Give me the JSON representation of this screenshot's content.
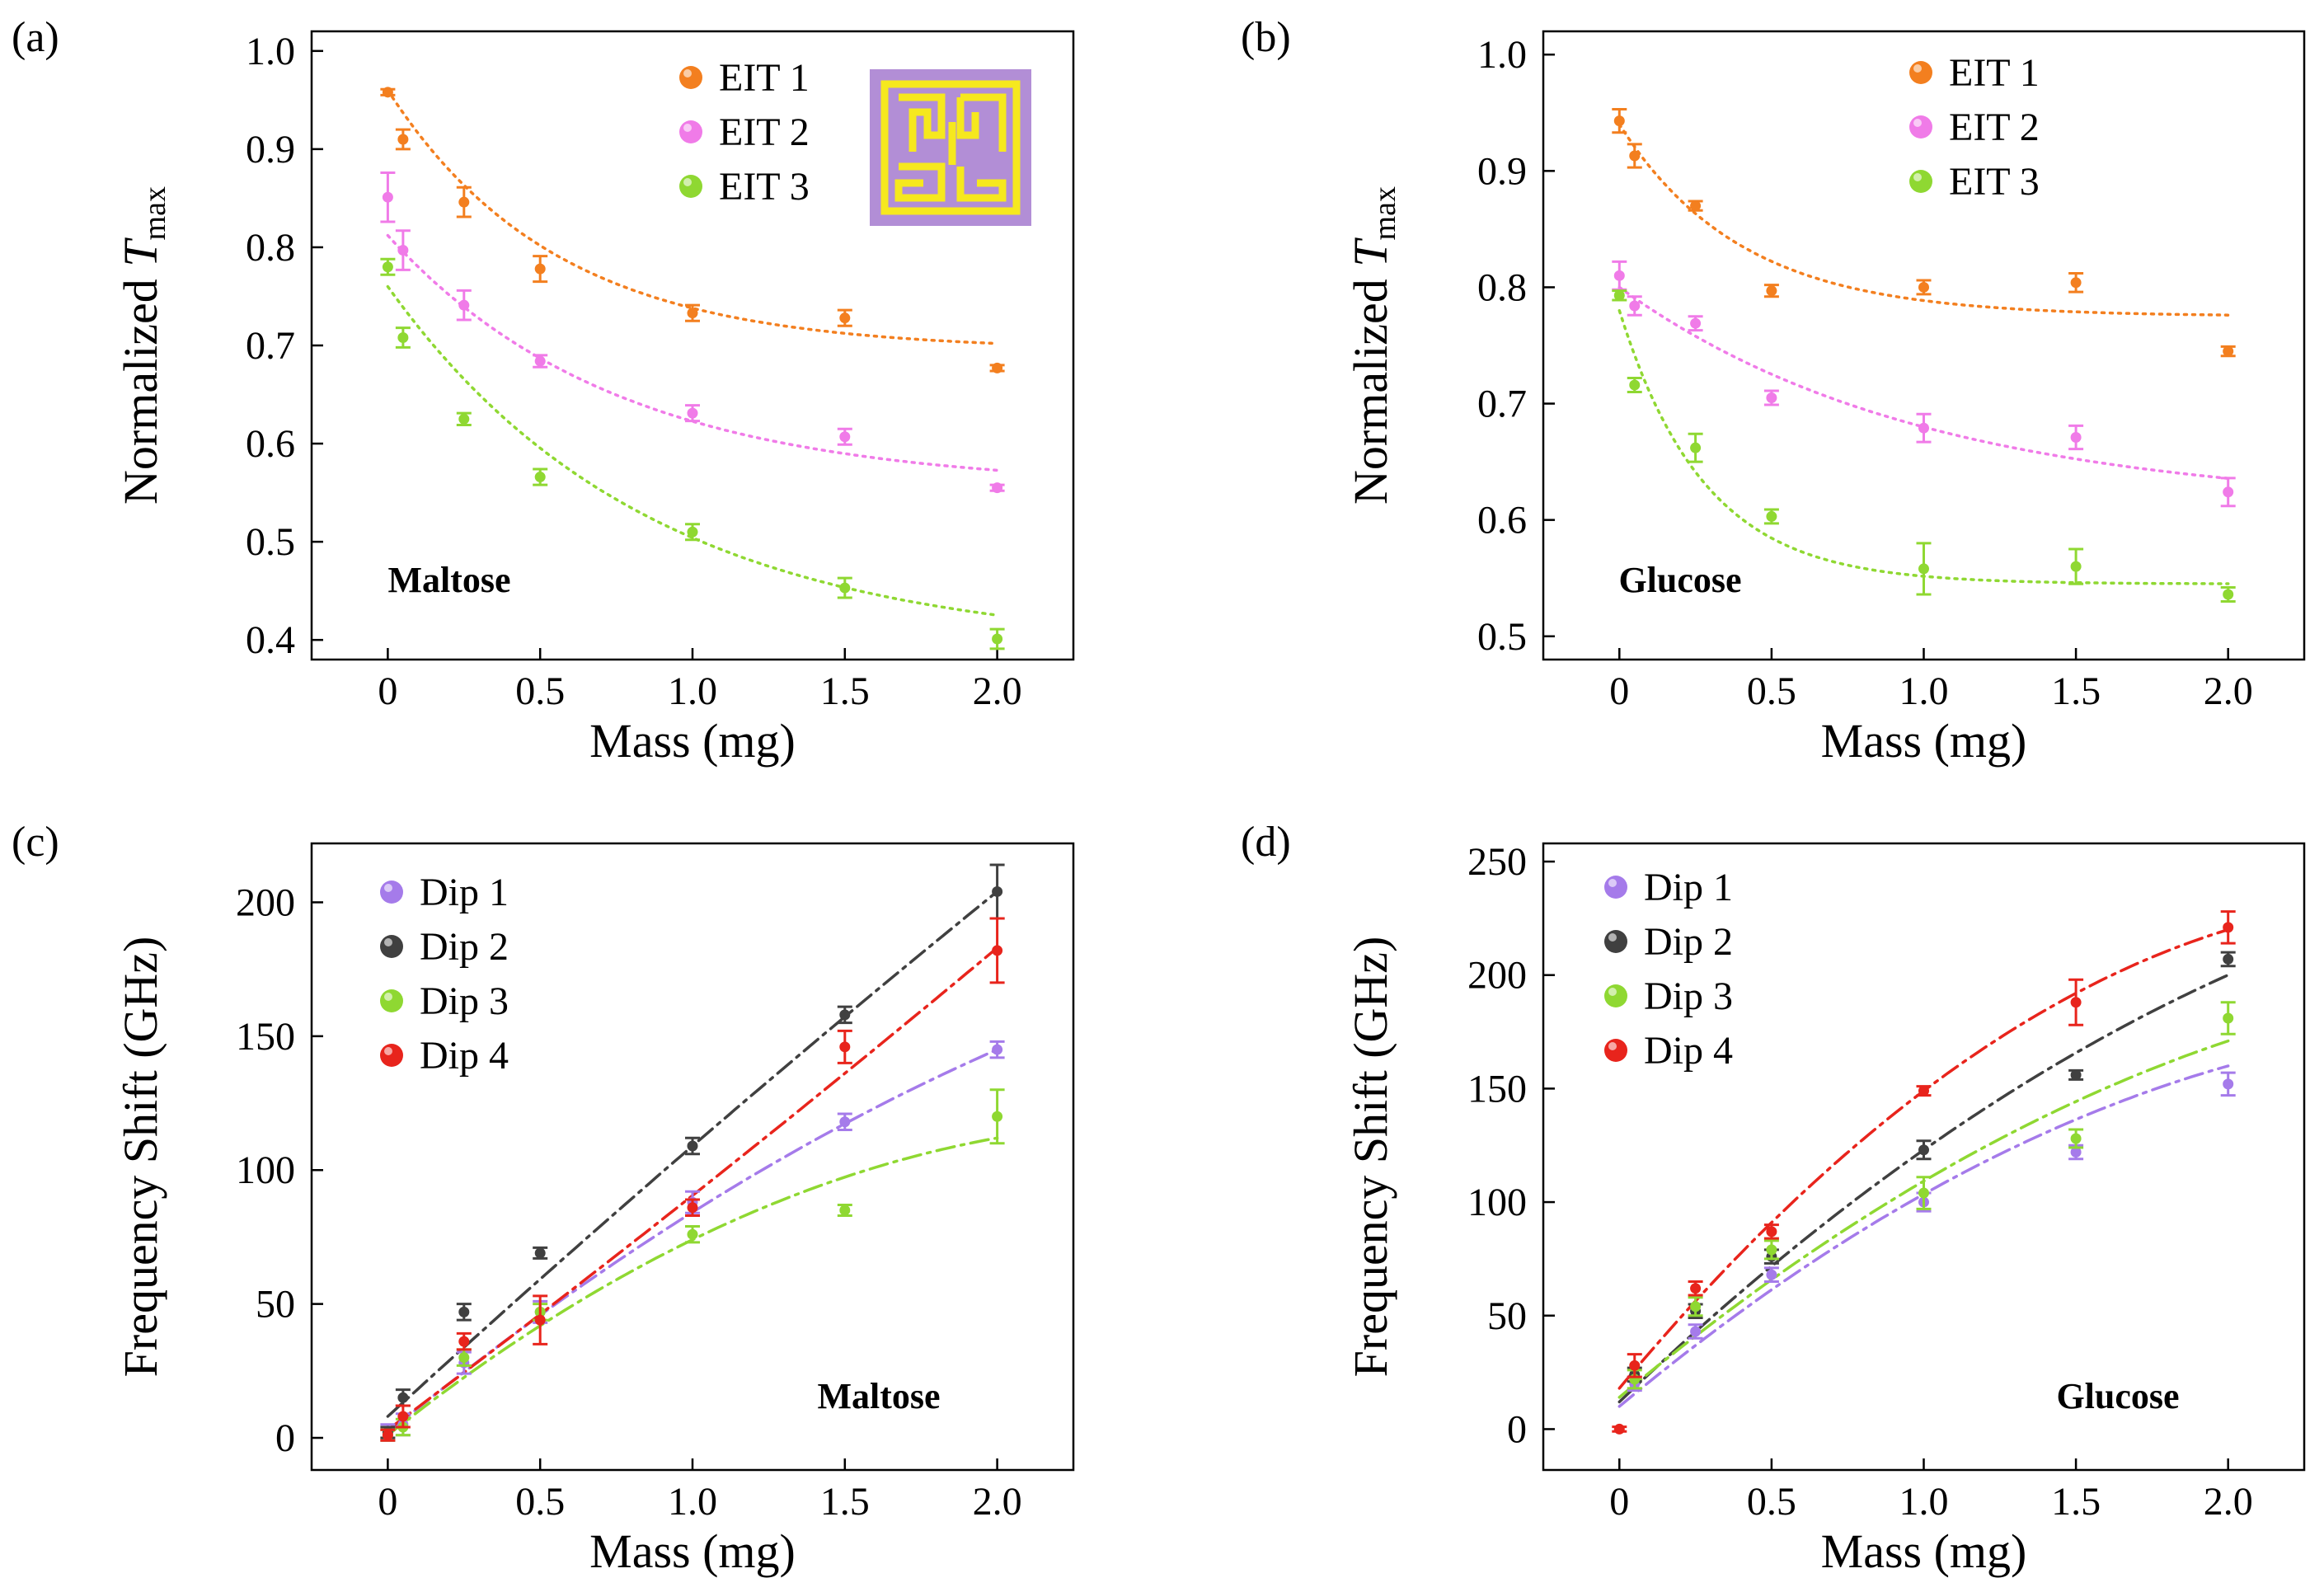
{
  "chart_data": [
    {
      "panel_label": "(a)",
      "type": "scatter",
      "title": "",
      "annotation": "Maltose",
      "xlabel": "Mass (mg)",
      "ylabel_main": "Normalized ",
      "ylabel_italic": "T",
      "ylabel_sub": "max",
      "xlim": [
        -0.25,
        2.25
      ],
      "ylim": [
        0.38,
        1.02
      ],
      "xticks": [
        0,
        0.5,
        1.0,
        1.5,
        2.0
      ],
      "xtick_labels": [
        "0",
        "0.5",
        "1.0",
        "1.5",
        "2.0"
      ],
      "yticks": [
        0.4,
        0.5,
        0.6,
        0.7,
        0.8,
        0.9,
        1.0
      ],
      "ytick_labels": [
        "0.4",
        "0.5",
        "0.6",
        "0.7",
        "0.8",
        "0.9",
        "1.0"
      ],
      "fit_style": "dot",
      "inset": true,
      "series": [
        {
          "name": "EIT 1",
          "color": "#F37F1F",
          "x": [
            0,
            0.05,
            0.25,
            0.5,
            1.0,
            1.5,
            2.0
          ],
          "y": [
            0.958,
            0.91,
            0.846,
            0.778,
            0.733,
            0.728,
            0.677
          ],
          "err": [
            0.003,
            0.01,
            0.015,
            0.013,
            0.008,
            0.008,
            0.003
          ],
          "fit": {
            "a": 0.695,
            "b": 0.265,
            "tau": 0.55
          }
        },
        {
          "name": "EIT 2",
          "color": "#F07BE8",
          "x": [
            0,
            0.05,
            0.25,
            0.5,
            1.0,
            1.5,
            2.0
          ],
          "y": [
            0.851,
            0.797,
            0.741,
            0.684,
            0.631,
            0.607,
            0.555
          ],
          "err": [
            0.025,
            0.02,
            0.015,
            0.006,
            0.008,
            0.008,
            0.003
          ],
          "fit": {
            "a": 0.555,
            "b": 0.257,
            "tau": 0.75
          }
        },
        {
          "name": "EIT 3",
          "color": "#8FD832",
          "x": [
            0,
            0.05,
            0.25,
            0.5,
            1.0,
            1.5,
            2.0
          ],
          "y": [
            0.78,
            0.708,
            0.625,
            0.566,
            0.51,
            0.453,
            0.401
          ],
          "err": [
            0.008,
            0.01,
            0.006,
            0.008,
            0.008,
            0.01,
            0.01
          ],
          "fit": {
            "a": 0.39,
            "b": 0.37,
            "tau": 0.85
          }
        }
      ]
    },
    {
      "panel_label": "(b)",
      "type": "scatter",
      "title": "",
      "annotation": "Glucose",
      "xlabel": "Mass (mg)",
      "ylabel_main": "Normalized ",
      "ylabel_italic": "T",
      "ylabel_sub": "max",
      "xlim": [
        -0.25,
        2.25
      ],
      "ylim": [
        0.48,
        1.02
      ],
      "xticks": [
        0,
        0.5,
        1.0,
        1.5,
        2.0
      ],
      "xtick_labels": [
        "0",
        "0.5",
        "1.0",
        "1.5",
        "2.0"
      ],
      "yticks": [
        0.5,
        0.6,
        0.7,
        0.8,
        0.9,
        1.0
      ],
      "ytick_labels": [
        "0.5",
        "0.6",
        "0.7",
        "0.8",
        "0.9",
        "1.0"
      ],
      "fit_style": "dot",
      "inset": false,
      "series": [
        {
          "name": "EIT 1",
          "color": "#F37F1F",
          "x": [
            0,
            0.05,
            0.25,
            0.5,
            1.0,
            1.5,
            2.0
          ],
          "y": [
            0.943,
            0.913,
            0.87,
            0.797,
            0.8,
            0.804,
            0.745
          ],
          "err": [
            0.01,
            0.01,
            0.004,
            0.005,
            0.006,
            0.008,
            0.004
          ],
          "fit": {
            "a": 0.775,
            "b": 0.165,
            "tau": 0.4
          }
        },
        {
          "name": "EIT 2",
          "color": "#F07BE8",
          "x": [
            0,
            0.05,
            0.25,
            0.5,
            1.0,
            1.5,
            2.0
          ],
          "y": [
            0.81,
            0.784,
            0.769,
            0.705,
            0.679,
            0.671,
            0.624
          ],
          "err": [
            0.012,
            0.008,
            0.006,
            0.006,
            0.012,
            0.01,
            0.012
          ],
          "fit": {
            "a": 0.61,
            "b": 0.19,
            "tau": 1.0
          }
        },
        {
          "name": "EIT 3",
          "color": "#8FD832",
          "x": [
            0,
            0.05,
            0.25,
            0.5,
            1.0,
            1.5,
            2.0
          ],
          "y": [
            0.793,
            0.716,
            0.662,
            0.603,
            0.558,
            0.56,
            0.536
          ],
          "err": [
            0.004,
            0.006,
            0.012,
            0.006,
            0.022,
            0.015,
            0.006
          ],
          "fit": {
            "a": 0.545,
            "b": 0.235,
            "tau": 0.28
          }
        }
      ]
    },
    {
      "panel_label": "(c)",
      "type": "scatter",
      "title": "",
      "annotation": "Maltose",
      "xlabel": "Mass (mg)",
      "ylabel_main": "Frequency Shift (GHz)",
      "ylabel_italic": "",
      "ylabel_sub": "",
      "xlim": [
        -0.25,
        2.25
      ],
      "ylim": [
        -12,
        222
      ],
      "xticks": [
        0,
        0.5,
        1.0,
        1.5,
        2.0
      ],
      "xtick_labels": [
        "0",
        "0.5",
        "1.0",
        "1.5",
        "2.0"
      ],
      "yticks": [
        0,
        50,
        100,
        150,
        200
      ],
      "ytick_labels": [
        "0",
        "50",
        "100",
        "150",
        "200"
      ],
      "fit_style": "dashdot",
      "inset": false,
      "series": [
        {
          "name": "Dip 1",
          "color": "#A57BEA",
          "x": [
            0,
            0.05,
            0.25,
            0.5,
            1.0,
            1.5,
            2.0
          ],
          "y": [
            2,
            5,
            28,
            47,
            88,
            118,
            145
          ],
          "err": [
            3,
            4,
            4,
            4,
            4,
            3,
            3
          ],
          "fit": {
            "c0": 2,
            "c1": 93,
            "c2": -10.75
          }
        },
        {
          "name": "Dip 2",
          "color": "#404040",
          "x": [
            0,
            0.05,
            0.25,
            0.5,
            1.0,
            1.5,
            2.0
          ],
          "y": [
            2,
            15,
            47,
            69,
            109,
            158,
            204
          ],
          "err": [
            2,
            3,
            3,
            2,
            3,
            3,
            10
          ],
          "fit": {
            "c0": 8,
            "c1": 104,
            "c2": -3.0
          }
        },
        {
          "name": "Dip 3",
          "color": "#8FD832",
          "x": [
            0,
            0.05,
            0.25,
            0.5,
            1.0,
            1.5,
            2.0
          ],
          "y": [
            1,
            4,
            30,
            47,
            76,
            85,
            120
          ],
          "err": [
            2,
            3,
            3,
            3,
            3,
            2,
            10
          ],
          "fit": {
            "c0": 1,
            "c1": 90.5,
            "c2": -17.5
          }
        },
        {
          "name": "Dip 4",
          "color": "#E8241C",
          "x": [
            0,
            0.05,
            0.25,
            0.5,
            1.0,
            1.5,
            2.0
          ],
          "y": [
            1,
            8,
            36,
            44,
            86,
            146,
            182
          ],
          "err": [
            2,
            4,
            3,
            9,
            3,
            6,
            12
          ],
          "fit": {
            "c0": 3,
            "c1": 85,
            "c2": 2.5
          }
        }
      ]
    },
    {
      "panel_label": "(d)",
      "type": "scatter",
      "title": "",
      "annotation": "Glucose",
      "xlabel": "Mass (mg)",
      "ylabel_main": "Frequency Shift (GHz)",
      "ylabel_italic": "",
      "ylabel_sub": "",
      "xlim": [
        -0.25,
        2.25
      ],
      "ylim": [
        -18,
        258
      ],
      "xticks": [
        0,
        0.5,
        1.0,
        1.5,
        2.0
      ],
      "xtick_labels": [
        "0",
        "0.5",
        "1.0",
        "1.5",
        "2.0"
      ],
      "yticks": [
        0,
        50,
        100,
        150,
        200,
        250
      ],
      "ytick_labels": [
        "0",
        "50",
        "100",
        "150",
        "200",
        "250"
      ],
      "fit_style": "dashdot",
      "inset": false,
      "series": [
        {
          "name": "Dip 1",
          "color": "#A57BEA",
          "x": [
            0.05,
            0.25,
            0.5,
            1.0,
            1.5,
            2.0
          ],
          "y": [
            20,
            43,
            68,
            100,
            122,
            152
          ],
          "err": [
            3,
            3,
            3,
            4,
            3,
            5
          ],
          "fit": {
            "c0": 10,
            "c1": 112,
            "c2": -18.5
          }
        },
        {
          "name": "Dip 2",
          "color": "#404040",
          "x": [
            0.05,
            0.25,
            0.5,
            1.0,
            1.5,
            2.0
          ],
          "y": [
            24,
            52,
            76,
            123,
            156,
            207
          ],
          "err": [
            3,
            3,
            3,
            4,
            2,
            3
          ],
          "fit": {
            "c0": 12,
            "c1": 128,
            "c2": -17.0
          }
        },
        {
          "name": "Dip 3",
          "color": "#8FD832",
          "x": [
            0.05,
            0.25,
            0.5,
            1.0,
            1.5,
            2.0
          ],
          "y": [
            22,
            54,
            79,
            104,
            128,
            181
          ],
          "err": [
            4,
            4,
            4,
            7,
            4,
            7
          ],
          "fit": {
            "c0": 14,
            "c1": 112,
            "c2": -16.75
          }
        },
        {
          "name": "Dip 4",
          "color": "#E8241C",
          "x": [
            0,
            0.05,
            0.25,
            0.5,
            1.0,
            1.5,
            2.0
          ],
          "y": [
            0,
            28,
            62,
            87,
            149,
            188,
            221
          ],
          "err": [
            1,
            5,
            3,
            3,
            2,
            10,
            7
          ],
          "fit": {
            "c0": 18,
            "c1": 161,
            "c2": -30.0
          }
        }
      ]
    }
  ]
}
